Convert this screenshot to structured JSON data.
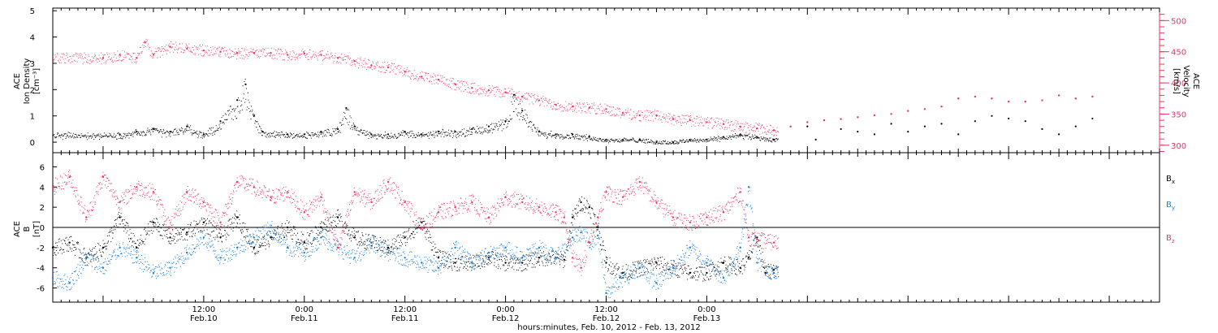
{
  "colors": {
    "axis": "#000000",
    "density": "#000000",
    "velocity": "#e8355f",
    "bx": "#000000",
    "by": "#1a7fd4",
    "bz": "#e8355f"
  },
  "chart_data": [
    {
      "type": "scatter",
      "panel": "top",
      "left_ylabel": [
        "ACE",
        "Ion Density",
        "[cm⁻³]"
      ],
      "right_ylabel": [
        "ACE",
        "Velocity",
        "[km/s]"
      ],
      "left_ylim": [
        -0.4,
        5.1
      ],
      "left_yticks": [
        "0",
        "1",
        "2",
        "3",
        "4",
        "5"
      ],
      "right_ylim": [
        288,
        520
      ],
      "right_yticks": [
        "300",
        "350",
        "400",
        "450",
        "500"
      ],
      "series": [
        {
          "axis": "left",
          "color": "#000000",
          "points": [
            [
              2,
              0.3
            ],
            [
              4,
              0.4
            ],
            [
              6,
              0.5
            ],
            [
              8,
              0.4
            ],
            [
              10,
              0.6
            ],
            [
              12,
              0.3
            ],
            [
              14,
              0.8
            ],
            [
              16,
              1.6
            ],
            [
              17,
              2.2
            ],
            [
              18,
              1.0
            ],
            [
              19,
              0.4
            ],
            [
              22,
              0.3
            ],
            [
              24,
              0.3
            ],
            [
              26,
              0.4
            ],
            [
              28,
              0.5
            ],
            [
              29,
              1.3
            ],
            [
              30,
              0.6
            ],
            [
              32,
              0.3
            ],
            [
              34,
              0.3
            ],
            [
              36,
              0.4
            ],
            [
              38,
              0.3
            ],
            [
              40,
              0.4
            ],
            [
              42,
              0.4
            ],
            [
              44,
              0.5
            ],
            [
              46,
              0.6
            ],
            [
              48,
              0.8
            ],
            [
              49,
              1.8
            ],
            [
              50,
              1.2
            ],
            [
              52,
              0.4
            ],
            [
              54,
              0.3
            ],
            [
              56,
              0.3
            ],
            [
              58,
              0.2
            ],
            [
              60,
              0.1
            ],
            [
              62,
              0.1
            ],
            [
              64,
              0.1
            ],
            [
              66,
              0.0
            ],
            [
              68,
              0.0
            ],
            [
              70,
              0.1
            ],
            [
              72,
              0.1
            ],
            [
              74,
              0.2
            ],
            [
              76,
              0.3
            ],
            [
              78,
              0.2
            ],
            [
              80,
              0.1
            ],
            [
              84,
              0.6
            ],
            [
              85,
              0.1
            ],
            [
              88,
              0.5
            ],
            [
              90,
              0.4
            ],
            [
              92,
              0.3
            ],
            [
              94,
              0.7
            ],
            [
              96,
              0.4
            ],
            [
              98,
              0.6
            ],
            [
              100,
              0.7
            ],
            [
              102,
              0.3
            ],
            [
              104,
              0.8
            ],
            [
              106,
              1.0
            ],
            [
              108,
              0.9
            ],
            [
              110,
              0.8
            ],
            [
              112,
              0.5
            ],
            [
              114,
              0.3
            ],
            [
              116,
              0.6
            ],
            [
              118,
              0.9
            ]
          ]
        },
        {
          "axis": "right",
          "color": "#e8355f",
          "points": [
            [
              0,
              440
            ],
            [
              2,
              445
            ],
            [
              4,
              440
            ],
            [
              5,
              465
            ],
            [
              6,
              445
            ],
            [
              8,
              458
            ],
            [
              10,
              455
            ],
            [
              12,
              452
            ],
            [
              14,
              450
            ],
            [
              16,
              448
            ],
            [
              18,
              448
            ],
            [
              20,
              448
            ],
            [
              22,
              445
            ],
            [
              24,
              447
            ],
            [
              26,
              445
            ],
            [
              28,
              440
            ],
            [
              30,
              435
            ],
            [
              32,
              428
            ],
            [
              34,
              425
            ],
            [
              36,
              418
            ],
            [
              38,
              410
            ],
            [
              40,
              405
            ],
            [
              42,
              398
            ],
            [
              44,
              392
            ],
            [
              46,
              388
            ],
            [
              48,
              385
            ],
            [
              50,
              378
            ],
            [
              52,
              372
            ],
            [
              54,
              365
            ],
            [
              56,
              362
            ],
            [
              58,
              360
            ],
            [
              60,
              358
            ],
            [
              62,
              352
            ],
            [
              64,
              348
            ],
            [
              66,
              348
            ],
            [
              68,
              342
            ],
            [
              70,
              340
            ],
            [
              72,
              337
            ],
            [
              74,
              334
            ],
            [
              76,
              330
            ],
            [
              78,
              327
            ],
            [
              80,
              324
            ],
            [
              82,
              330
            ],
            [
              84,
              337
            ],
            [
              86,
              340
            ],
            [
              88,
              342
            ],
            [
              90,
              345
            ],
            [
              92,
              348
            ],
            [
              94,
              350
            ],
            [
              96,
              355
            ],
            [
              98,
              358
            ],
            [
              100,
              362
            ],
            [
              102,
              375
            ],
            [
              104,
              378
            ],
            [
              106,
              375
            ],
            [
              108,
              370
            ],
            [
              110,
              370
            ],
            [
              112,
              372
            ],
            [
              114,
              380
            ],
            [
              116,
              375
            ],
            [
              118,
              378
            ]
          ]
        }
      ]
    },
    {
      "type": "scatter",
      "panel": "bottom",
      "ylabel": [
        "ACE",
        "B",
        "[nT]"
      ],
      "ylim": [
        -7.4,
        7.4
      ],
      "yticks": [
        "-6",
        "-4",
        "-2",
        "0",
        "2",
        "4",
        "6"
      ],
      "zero_line": true,
      "xlabel": "hours:minutes, Feb. 10, 2012 - Feb. 13, 2012",
      "xlim": [
        -6,
        126
      ],
      "xticks": [
        {
          "hour": 12,
          "time": "12:00",
          "date": "Feb.10"
        },
        {
          "hour": 24,
          "time": "0:00",
          "date": "Feb.11"
        },
        {
          "hour": 36,
          "time": "12:00",
          "date": "Feb.11"
        },
        {
          "hour": 48,
          "time": "0:00",
          "date": "Feb.12"
        },
        {
          "hour": 60,
          "time": "12:00",
          "date": "Feb.12"
        },
        {
          "hour": 72,
          "time": "0:00",
          "date": "Feb.13"
        }
      ],
      "series": [
        {
          "name": "Bx",
          "label_main": "B",
          "label_sub": "x",
          "color": "#000000",
          "points": [
            [
              -6,
              -2.0
            ],
            [
              -4,
              -1.5
            ],
            [
              -2,
              -3.0
            ],
            [
              0,
              -2.0
            ],
            [
              2,
              1.0
            ],
            [
              4,
              -2.0
            ],
            [
              6,
              0.5
            ],
            [
              8,
              -1.0
            ],
            [
              10,
              -0.5
            ],
            [
              12,
              0.5
            ],
            [
              14,
              -1.0
            ],
            [
              16,
              1.0
            ],
            [
              18,
              -2.0
            ],
            [
              20,
              -1.0
            ],
            [
              22,
              0.0
            ],
            [
              24,
              -1.5
            ],
            [
              26,
              0.0
            ],
            [
              28,
              1.0
            ],
            [
              30,
              -1.0
            ],
            [
              32,
              -1.5
            ],
            [
              34,
              -2.0
            ],
            [
              36,
              -1.0
            ],
            [
              38,
              0.5
            ],
            [
              40,
              -3.0
            ],
            [
              42,
              -3.5
            ],
            [
              44,
              -3.5
            ],
            [
              46,
              -3.0
            ],
            [
              48,
              -3.5
            ],
            [
              50,
              -3.5
            ],
            [
              52,
              -3.0
            ],
            [
              54,
              -3.0
            ],
            [
              55,
              -3.2
            ],
            [
              56,
              1.0
            ],
            [
              57,
              2.5
            ],
            [
              58,
              2.0
            ],
            [
              59,
              0.0
            ],
            [
              60,
              -3.5
            ],
            [
              62,
              -4.5
            ],
            [
              64,
              -4.0
            ],
            [
              66,
              -3.5
            ],
            [
              68,
              -4.0
            ],
            [
              70,
              -4.5
            ],
            [
              72,
              -4.5
            ],
            [
              74,
              -3.5
            ],
            [
              76,
              -4.0
            ],
            [
              77,
              -3.0
            ],
            [
              78,
              -1.0
            ],
            [
              79,
              -4.5
            ],
            [
              80,
              -4.2
            ]
          ]
        },
        {
          "name": "By",
          "label_main": "B",
          "label_sub": "y",
          "color": "#1a7fd4",
          "points": [
            [
              -6,
              -5.0
            ],
            [
              -4,
              -5.5
            ],
            [
              -2,
              -3.0
            ],
            [
              0,
              -4.0
            ],
            [
              2,
              -2.0
            ],
            [
              4,
              -3.0
            ],
            [
              6,
              -4.5
            ],
            [
              8,
              -4.0
            ],
            [
              10,
              -2.5
            ],
            [
              12,
              -1.0
            ],
            [
              14,
              -3.0
            ],
            [
              16,
              -2.0
            ],
            [
              18,
              -1.0
            ],
            [
              20,
              0.0
            ],
            [
              22,
              -2.0
            ],
            [
              24,
              -2.5
            ],
            [
              26,
              -1.0
            ],
            [
              28,
              -2.0
            ],
            [
              30,
              -3.0
            ],
            [
              32,
              -1.5
            ],
            [
              34,
              -2.5
            ],
            [
              36,
              -3.0
            ],
            [
              38,
              -3.5
            ],
            [
              40,
              -4.0
            ],
            [
              42,
              -2.0
            ],
            [
              44,
              -3.5
            ],
            [
              46,
              -2.5
            ],
            [
              48,
              -2.0
            ],
            [
              50,
              -3.0
            ],
            [
              52,
              -2.0
            ],
            [
              54,
              -3.0
            ],
            [
              56,
              -1.0
            ],
            [
              57,
              -0.5
            ],
            [
              58,
              -1.5
            ],
            [
              59,
              -0.8
            ],
            [
              60,
              -6.5
            ],
            [
              62,
              -5.0
            ],
            [
              64,
              -4.0
            ],
            [
              66,
              -5.5
            ],
            [
              68,
              -4.0
            ],
            [
              70,
              -2.0
            ],
            [
              72,
              -3.5
            ],
            [
              74,
              -5.0
            ],
            [
              76,
              -2.0
            ],
            [
              77,
              4.0
            ],
            [
              78,
              -3.5
            ],
            [
              80,
              -4.5
            ]
          ]
        },
        {
          "name": "Bz",
          "label_main": "B",
          "label_sub": "z",
          "color": "#e8355f",
          "points": [
            [
              -6,
              4.0
            ],
            [
              -4,
              5.0
            ],
            [
              -2,
              1.0
            ],
            [
              0,
              5.0
            ],
            [
              2,
              2.5
            ],
            [
              4,
              4.0
            ],
            [
              6,
              3.5
            ],
            [
              8,
              0.0
            ],
            [
              10,
              3.5
            ],
            [
              12,
              2.5
            ],
            [
              14,
              0.5
            ],
            [
              16,
              4.5
            ],
            [
              18,
              4.0
            ],
            [
              20,
              3.0
            ],
            [
              22,
              3.5
            ],
            [
              24,
              1.5
            ],
            [
              26,
              3.0
            ],
            [
              28,
              -2.0
            ],
            [
              30,
              3.5
            ],
            [
              32,
              2.5
            ],
            [
              34,
              4.5
            ],
            [
              36,
              2.5
            ],
            [
              38,
              0.0
            ],
            [
              40,
              1.5
            ],
            [
              42,
              2.0
            ],
            [
              44,
              2.5
            ],
            [
              46,
              1.0
            ],
            [
              48,
              3.0
            ],
            [
              50,
              2.5
            ],
            [
              52,
              2.0
            ],
            [
              54,
              1.5
            ],
            [
              55,
              1.0
            ],
            [
              56,
              -3.0
            ],
            [
              57,
              -4.0
            ],
            [
              58,
              -1.5
            ],
            [
              59,
              1.0
            ],
            [
              60,
              3.5
            ],
            [
              62,
              3.0
            ],
            [
              64,
              4.5
            ],
            [
              66,
              2.5
            ],
            [
              68,
              1.0
            ],
            [
              70,
              0.5
            ],
            [
              72,
              1.0
            ],
            [
              74,
              1.5
            ],
            [
              76,
              3.5
            ],
            [
              77,
              -1.0
            ],
            [
              78,
              -1.2
            ],
            [
              80,
              -1.5
            ]
          ]
        }
      ]
    }
  ]
}
